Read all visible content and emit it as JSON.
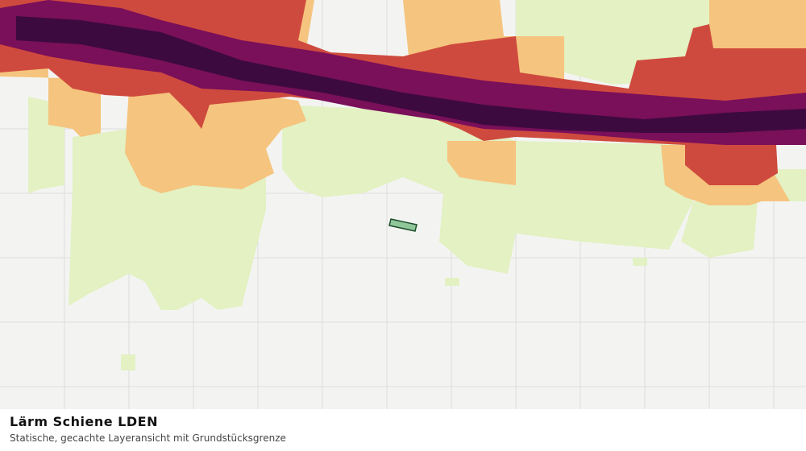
{
  "panel": {
    "title": "Lärm Schiene LDEN",
    "subtitle": "Statische, gecachte Layeransicht mit Grundstücksgrenze"
  }
}
